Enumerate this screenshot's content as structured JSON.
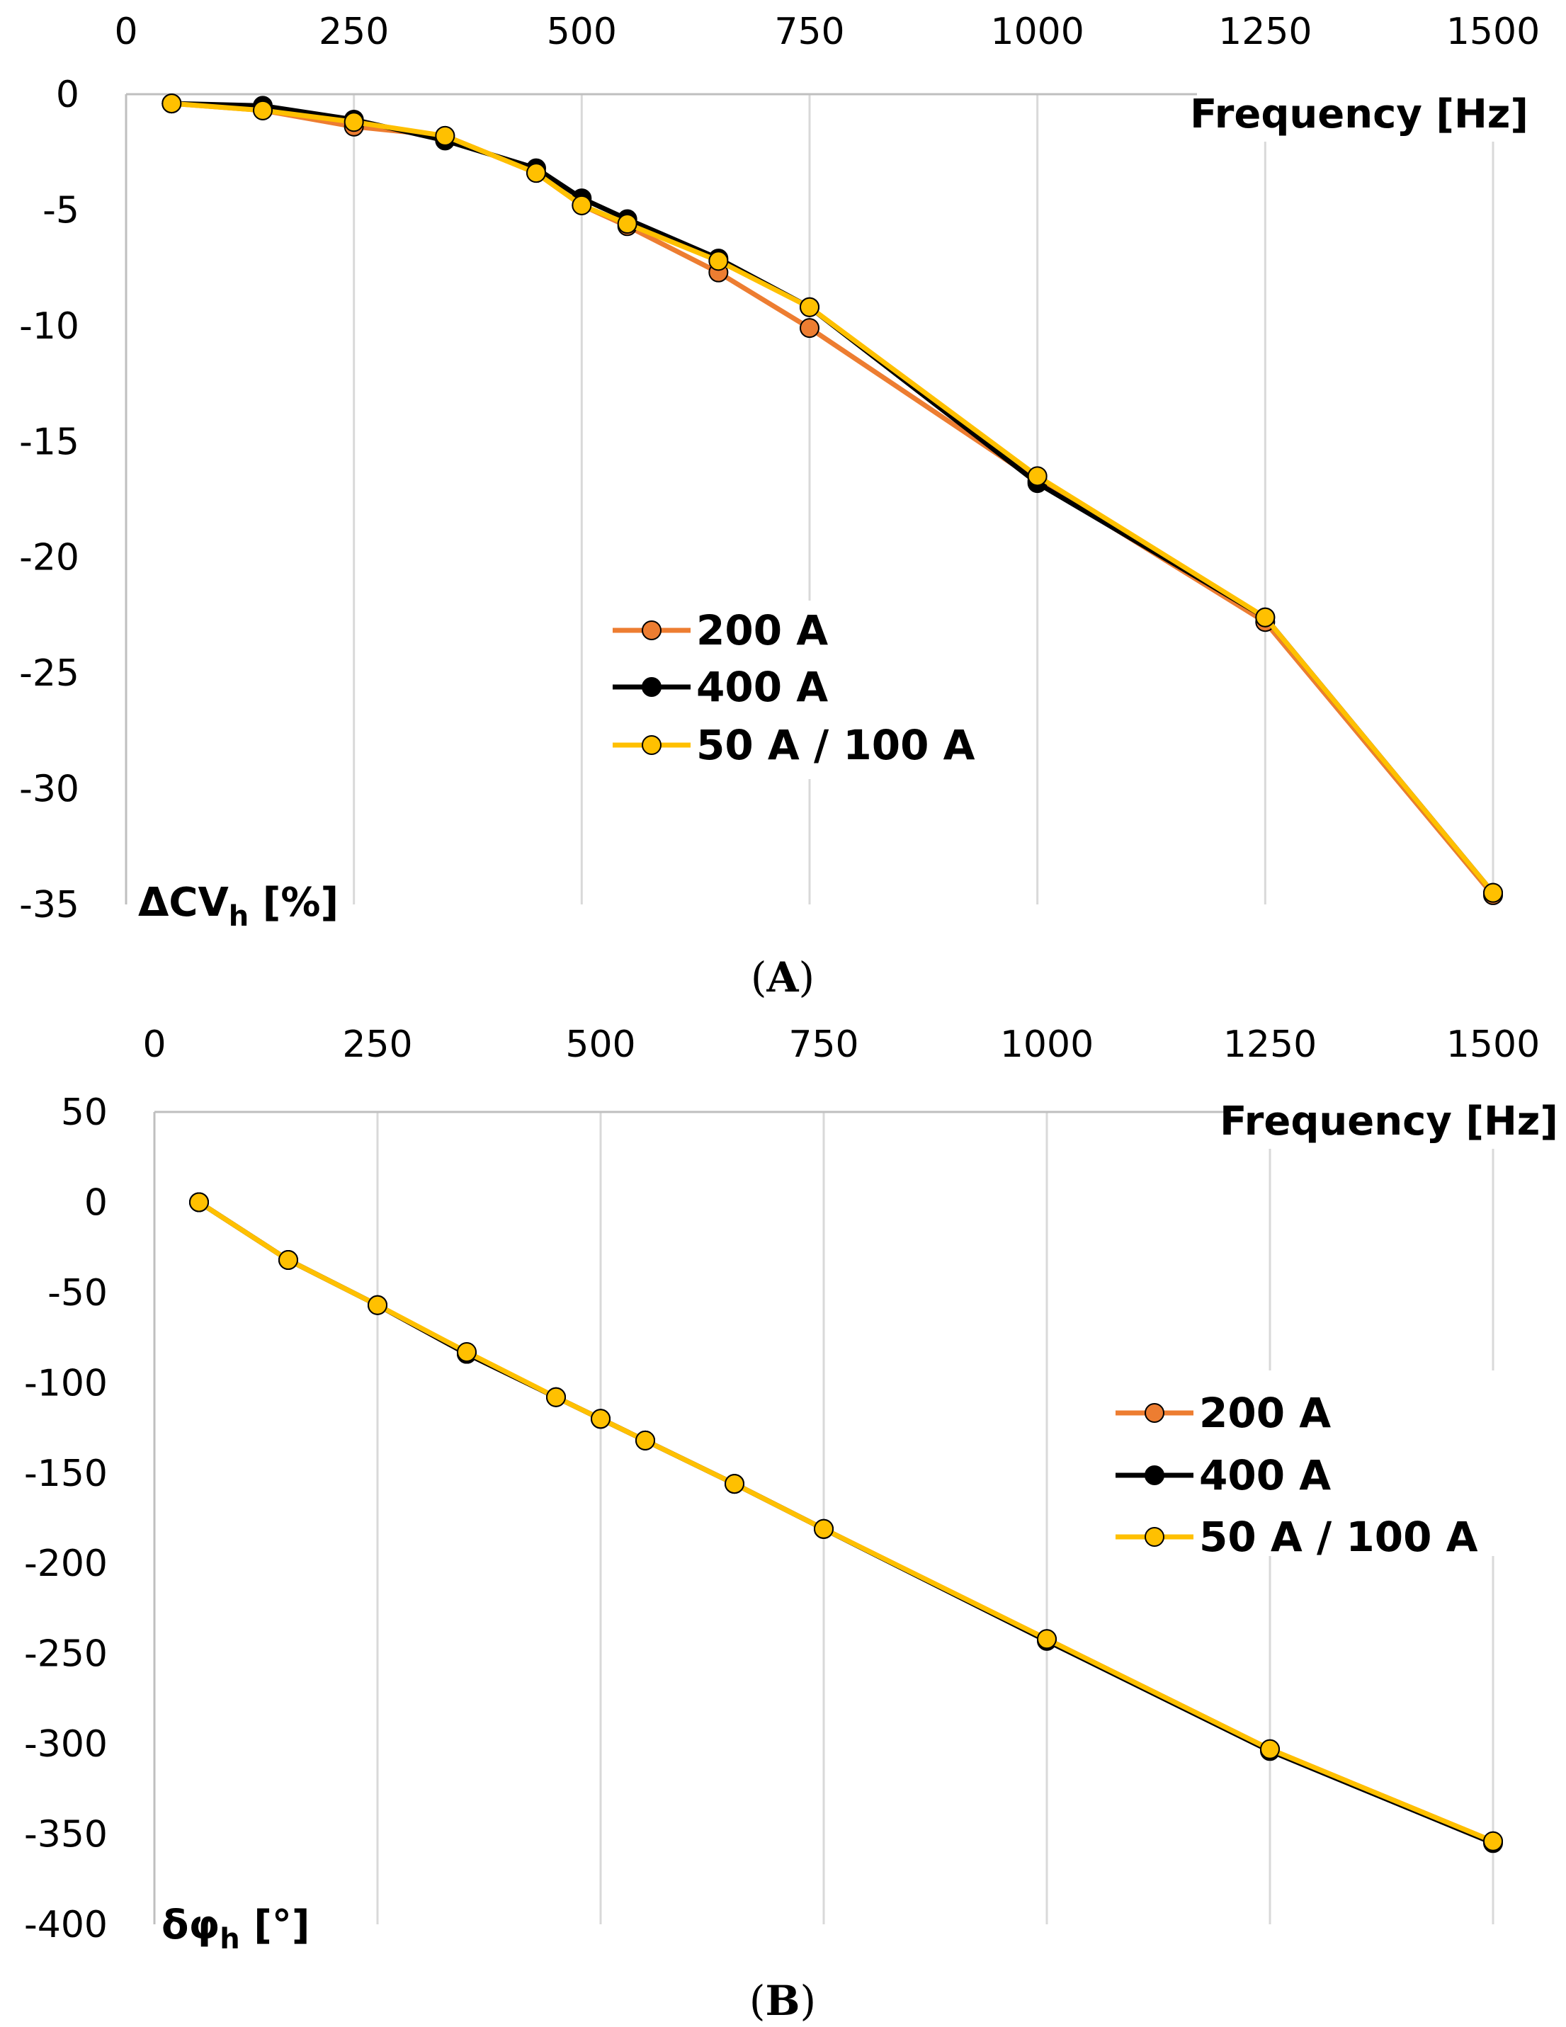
{
  "chart_data": [
    {
      "type": "line",
      "panel_label": "A",
      "xlabel": "Frequency [Hz]",
      "ylabel_main": "ΔCV",
      "ylabel_sub": "h",
      "ylabel_unit": " [%]",
      "x_ticks": [
        "0",
        "250",
        "500",
        "750",
        "1000",
        "1250",
        "1500"
      ],
      "y_ticks": [
        "0",
        "-5",
        "-10",
        "-15",
        "-20",
        "-25",
        "-30",
        "-35"
      ],
      "xlim": [
        0,
        1500
      ],
      "ylim": [
        -35,
        0
      ],
      "grid": "vertical",
      "legend_position": "center",
      "x": [
        50,
        150,
        250,
        350,
        450,
        500,
        550,
        650,
        750,
        1000,
        1250,
        1500
      ],
      "series": [
        {
          "name": "200 A",
          "color": "#ED7D31",
          "values": [
            -0.4,
            -0.7,
            -1.4,
            -1.8,
            -3.4,
            -4.8,
            -5.7,
            -7.7,
            -10.1,
            -16.7,
            -22.8,
            -34.6
          ]
        },
        {
          "name": "400 A",
          "color": "#000000",
          "values": [
            -0.4,
            -0.5,
            -1.1,
            -2.0,
            -3.2,
            -4.5,
            -5.4,
            -7.1,
            -9.2,
            -16.8,
            -22.6,
            -34.5
          ]
        },
        {
          "name": "50 A / 100 A",
          "color": "#FFC000",
          "values": [
            -0.4,
            -0.7,
            -1.2,
            -1.8,
            -3.4,
            -4.8,
            -5.6,
            -7.2,
            -9.2,
            -16.5,
            -22.6,
            -34.5
          ]
        }
      ]
    },
    {
      "type": "line",
      "panel_label": "B",
      "xlabel": "Frequency [Hz]",
      "ylabel_main": "δφ",
      "ylabel_sub": "h",
      "ylabel_unit": " [°]",
      "x_ticks": [
        "0",
        "250",
        "500",
        "750",
        "1000",
        "1250",
        "1500"
      ],
      "y_ticks": [
        "50",
        "0",
        "-50",
        "-100",
        "-150",
        "-200",
        "-250",
        "-300",
        "-350",
        "-400"
      ],
      "xlim": [
        0,
        1500
      ],
      "ylim": [
        -400,
        50
      ],
      "grid": "vertical",
      "legend_position": "right",
      "x": [
        50,
        150,
        250,
        350,
        450,
        500,
        550,
        650,
        750,
        1000,
        1250,
        1500
      ],
      "series": [
        {
          "name": "200 A",
          "color": "#ED7D31",
          "values": [
            0,
            -32,
            -57,
            -84,
            -108,
            -120,
            -132,
            -156,
            -181,
            -242,
            -303,
            -354
          ]
        },
        {
          "name": "400 A",
          "color": "#000000",
          "values": [
            0,
            -32,
            -57,
            -84,
            -108,
            -120,
            -132,
            -156,
            -181,
            -243,
            -304,
            -355
          ]
        },
        {
          "name": "50 A / 100 A",
          "color": "#FFC000",
          "values": [
            0,
            -32,
            -57,
            -83,
            -108,
            -120,
            -132,
            -156,
            -181,
            -242,
            -303,
            -354
          ]
        }
      ]
    }
  ]
}
